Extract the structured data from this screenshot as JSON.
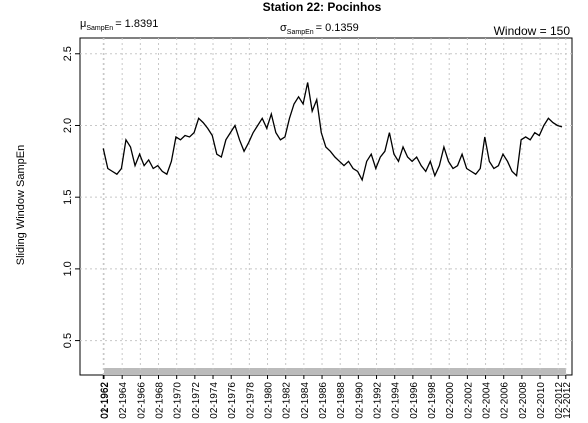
{
  "chart_data": {
    "type": "line",
    "title": "Station 22: Pocinhos",
    "annotations": {
      "mean": {
        "symbol": "μ",
        "sub": "SampEn",
        "text": "= 1.8391"
      },
      "sd": {
        "symbol": "σ",
        "sub": "SampEn",
        "text": "= 0.1359"
      },
      "window": "Window = 150"
    },
    "y_label": "Sliding Window SampEn",
    "x": [
      1962.0,
      1962.5,
      1963.0,
      1963.5,
      1964.0,
      1964.5,
      1965.0,
      1965.5,
      1966.0,
      1966.5,
      1967.0,
      1967.5,
      1968.0,
      1968.5,
      1969.0,
      1969.5,
      1970.0,
      1970.5,
      1971.0,
      1971.5,
      1972.0,
      1972.5,
      1973.0,
      1973.5,
      1974.0,
      1974.5,
      1975.0,
      1975.5,
      1976.0,
      1976.5,
      1977.0,
      1977.5,
      1978.0,
      1978.5,
      1979.0,
      1979.5,
      1980.0,
      1980.5,
      1981.0,
      1981.5,
      1982.0,
      1982.5,
      1983.0,
      1983.5,
      1984.0,
      1984.5,
      1985.0,
      1985.5,
      1986.0,
      1986.5,
      1987.0,
      1987.5,
      1988.0,
      1988.5,
      1989.0,
      1989.5,
      1990.0,
      1990.5,
      1991.0,
      1991.5,
      1992.0,
      1992.5,
      1993.0,
      1993.5,
      1994.0,
      1994.5,
      1995.0,
      1995.5,
      1996.0,
      1996.5,
      1997.0,
      1997.5,
      1998.0,
      1998.5,
      1999.0,
      1999.5,
      2000.0,
      2000.5,
      2001.0,
      2001.5,
      2002.0,
      2002.5,
      2003.0,
      2003.5,
      2004.0,
      2004.5,
      2005.0,
      2005.5,
      2006.0,
      2006.5,
      2007.0,
      2007.5,
      2008.0,
      2008.5,
      2009.0,
      2009.5,
      2010.0,
      2010.5,
      2011.0,
      2011.5,
      2012.0,
      2012.5
    ],
    "series": [
      {
        "name": "SampEn",
        "color": "#000000",
        "values": [
          1.84,
          1.7,
          1.68,
          1.66,
          1.7,
          1.9,
          1.85,
          1.72,
          1.8,
          1.72,
          1.76,
          1.7,
          1.72,
          1.68,
          1.66,
          1.75,
          1.92,
          1.9,
          1.93,
          1.92,
          1.95,
          2.05,
          2.02,
          1.98,
          1.93,
          1.8,
          1.78,
          1.9,
          1.95,
          2.0,
          1.9,
          1.82,
          1.88,
          1.95,
          2.0,
          2.05,
          1.98,
          2.08,
          1.95,
          1.9,
          1.92,
          2.05,
          2.15,
          2.2,
          2.15,
          2.3,
          2.1,
          2.18,
          1.95,
          1.85,
          1.82,
          1.78,
          1.75,
          1.72,
          1.75,
          1.7,
          1.68,
          1.62,
          1.75,
          1.8,
          1.7,
          1.78,
          1.82,
          1.95,
          1.8,
          1.75,
          1.85,
          1.78,
          1.75,
          1.78,
          1.72,
          1.68,
          1.75,
          1.65,
          1.72,
          1.85,
          1.75,
          1.7,
          1.72,
          1.8,
          1.7,
          1.68,
          1.66,
          1.7,
          1.92,
          1.75,
          1.7,
          1.72,
          1.8,
          1.75,
          1.68,
          1.65,
          1.9,
          1.92,
          1.9,
          1.95,
          1.93,
          2.0,
          2.05,
          2.02,
          2.0,
          1.99
        ]
      }
    ],
    "xlim": [
      1959.44,
      2013.6
    ],
    "xticks": [
      {
        "value": 1962.0,
        "label": "01-1962"
      },
      {
        "value": 1962.083,
        "label": "02-1962"
      },
      {
        "value": 1964.083,
        "label": "02-1964"
      },
      {
        "value": 1966.083,
        "label": "02-1966"
      },
      {
        "value": 1968.083,
        "label": "02-1968"
      },
      {
        "value": 1970.083,
        "label": "02-1970"
      },
      {
        "value": 1972.083,
        "label": "02-1972"
      },
      {
        "value": 1974.083,
        "label": "02-1974"
      },
      {
        "value": 1976.083,
        "label": "02-1976"
      },
      {
        "value": 1978.083,
        "label": "02-1978"
      },
      {
        "value": 1980.083,
        "label": "02-1980"
      },
      {
        "value": 1982.083,
        "label": "02-1982"
      },
      {
        "value": 1984.083,
        "label": "02-1984"
      },
      {
        "value": 1986.083,
        "label": "02-1986"
      },
      {
        "value": 1988.083,
        "label": "02-1988"
      },
      {
        "value": 1990.083,
        "label": "02-1990"
      },
      {
        "value": 1992.083,
        "label": "02-1992"
      },
      {
        "value": 1994.083,
        "label": "02-1994"
      },
      {
        "value": 1996.083,
        "label": "02-1996"
      },
      {
        "value": 1998.083,
        "label": "02-1998"
      },
      {
        "value": 2000.083,
        "label": "02-2000"
      },
      {
        "value": 2002.083,
        "label": "02-2002"
      },
      {
        "value": 2004.083,
        "label": "02-2004"
      },
      {
        "value": 2006.083,
        "label": "02-2006"
      },
      {
        "value": 2008.083,
        "label": "02-2008"
      },
      {
        "value": 2010.083,
        "label": "02-2010"
      },
      {
        "value": 2012.083,
        "label": "02-2012"
      },
      {
        "value": 2012.917,
        "label": "12-2012"
      }
    ],
    "ylim": [
      0.26,
      2.61
    ],
    "yticks": [
      0.5,
      {
        "value": 1.0,
        "label": "1.0"
      },
      1.5,
      {
        "value": 2.0,
        "label": "2.0"
      },
      2.5
    ],
    "grid": true
  }
}
